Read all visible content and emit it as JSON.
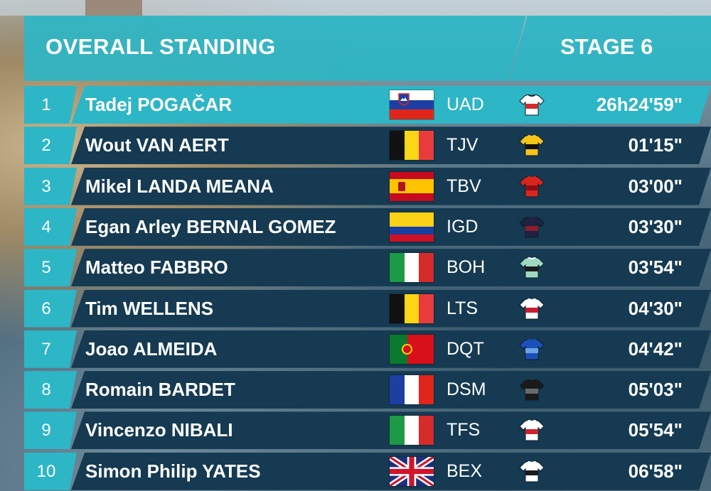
{
  "header": {
    "title": "OVERALL STANDING",
    "stage": "STAGE 6"
  },
  "standings": [
    {
      "rank": "1",
      "name": "Tadej POGAČAR",
      "flag": "slovenia-flag",
      "team": "UAD",
      "jersey": "uad-jersey-icon",
      "jersey_colors": [
        "#ffffff",
        "#d22b2b",
        "#1c1c1c"
      ],
      "time": "26h24'59\""
    },
    {
      "rank": "2",
      "name": "Wout VAN AERT",
      "flag": "belgium-flag",
      "team": "TJV",
      "jersey": "tjv-jersey-icon",
      "jersey_colors": [
        "#f5c518",
        "#111111",
        "#f5c518"
      ],
      "time": "01'15\""
    },
    {
      "rank": "3",
      "name": "Mikel LANDA MEANA",
      "flag": "spain-flag",
      "team": "TBV",
      "jersey": "tbv-jersey-icon",
      "jersey_colors": [
        "#d7261e",
        "#8b0f12",
        "#d7261e"
      ],
      "time": "03'00\""
    },
    {
      "rank": "4",
      "name": "Egan Arley BERNAL GOMEZ",
      "flag": "colombia-flag",
      "team": "IGD",
      "jersey": "igd-jersey-icon",
      "jersey_colors": [
        "#1d2340",
        "#8b1f2e",
        "#1d2340"
      ],
      "time": "03'30\""
    },
    {
      "rank": "5",
      "name": "Matteo FABBRO",
      "flag": "italy-flag",
      "team": "BOH",
      "jersey": "boh-jersey-icon",
      "jersey_colors": [
        "#9fd9c2",
        "#1c1c1c",
        "#ffffff"
      ],
      "time": "03'54\""
    },
    {
      "rank": "6",
      "name": "Tim WELLENS",
      "flag": "belgium-flag",
      "team": "LTS",
      "jersey": "lts-jersey-icon",
      "jersey_colors": [
        "#ffffff",
        "#c91c2e",
        "#ffffff"
      ],
      "time": "04'30\""
    },
    {
      "rank": "7",
      "name": "Joao ALMEIDA",
      "flag": "portugal-flag",
      "team": "DQT",
      "jersey": "dqt-jersey-icon",
      "jersey_colors": [
        "#1c4fb8",
        "#6aa4e8",
        "#1c4fb8"
      ],
      "time": "04'42\""
    },
    {
      "rank": "8",
      "name": "Romain BARDET",
      "flag": "france-flag",
      "team": "DSM",
      "jersey": "dsm-jersey-icon",
      "jersey_colors": [
        "#1a1a1a",
        "#6a6a6a",
        "#1a1a1a"
      ],
      "time": "05'03\""
    },
    {
      "rank": "9",
      "name": "Vincenzo NIBALI",
      "flag": "italy-flag",
      "team": "TFS",
      "jersey": "tfs-jersey-icon",
      "jersey_colors": [
        "#ffffff",
        "#c9262e",
        "#ffffff"
      ],
      "time": "05'54\""
    },
    {
      "rank": "10",
      "name": "Simon Philip YATES",
      "flag": "uk-flag",
      "team": "BEX",
      "jersey": "bex-jersey-icon",
      "jersey_colors": [
        "#ffffff",
        "#1a1a1a",
        "#ffffff"
      ],
      "time": "06'58\""
    }
  ]
}
